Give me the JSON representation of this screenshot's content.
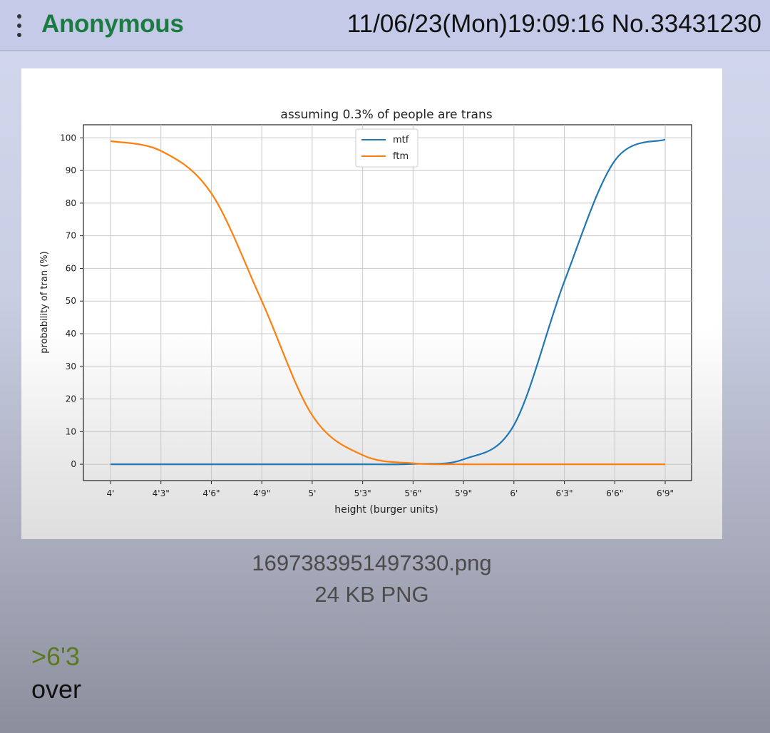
{
  "post": {
    "name": "Anonymous",
    "datetime": "11/06/23(Mon)19:09:16",
    "number": "No.33431230",
    "file_name": "1697383951497330.png",
    "file_size": "24 KB PNG",
    "greentext": ">6'3",
    "message": "over"
  },
  "icons": {
    "menu": "vertical-dots-icon"
  },
  "colors": {
    "name": "#1b7c42",
    "greentext": "#5b7a1f",
    "header_bg": "#c5cae8",
    "mtf": "#1f77b4",
    "ftm": "#ff7f0e"
  },
  "chart_data": {
    "type": "line",
    "title": "assuming 0.3% of people are trans",
    "xlabel": "height (burger units)",
    "ylabel": "probability of tran (%)",
    "x_ticks": [
      "4'",
      "4'3\"",
      "4'6\"",
      "4'9\"",
      "5'",
      "5'3\"",
      "5'6\"",
      "5'9\"",
      "6'",
      "6'3\"",
      "6'6\"",
      "6'9\""
    ],
    "y_ticks": [
      0,
      10,
      20,
      30,
      40,
      50,
      60,
      70,
      80,
      90,
      100
    ],
    "ylim": [
      -5,
      104
    ],
    "grid": true,
    "legend_position": "top-center",
    "series": [
      {
        "name": "mtf",
        "x": [
          "4'",
          "4'3\"",
          "4'6\"",
          "4'9\"",
          "5'",
          "5'3\"",
          "5'6\"",
          "5'9\"",
          "6'",
          "6'3\"",
          "6'6\"",
          "6'9\""
        ],
        "values": [
          0,
          0,
          0,
          0,
          0,
          0,
          0.1,
          1.5,
          12,
          56,
          93,
          99.5
        ]
      },
      {
        "name": "ftm",
        "x": [
          "4'",
          "4'3\"",
          "4'6\"",
          "4'9\"",
          "5'",
          "5'3\"",
          "5'6\"",
          "5'9\"",
          "6'",
          "6'3\"",
          "6'6\"",
          "6'9\""
        ],
        "values": [
          99,
          96,
          83,
          50,
          15,
          2.8,
          0.3,
          0,
          0,
          0,
          0,
          0
        ]
      }
    ]
  }
}
